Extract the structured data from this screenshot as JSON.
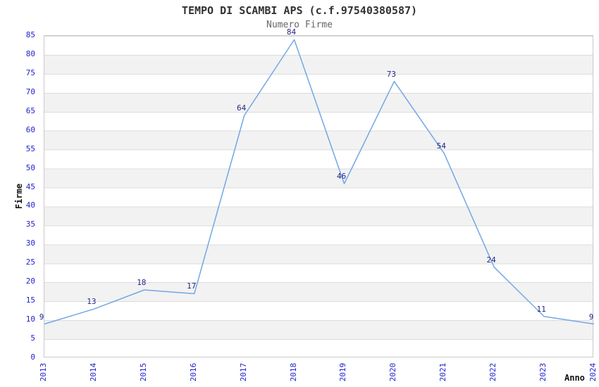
{
  "title": "TEMPO DI SCAMBI APS (c.f.97540380587)",
  "subtitle": "Numero Firme",
  "chart_data": {
    "type": "line",
    "categories": [
      "2013",
      "2014",
      "2015",
      "2016",
      "2017",
      "2018",
      "2019",
      "2020",
      "2021",
      "2022",
      "2023",
      "2024"
    ],
    "series": [
      {
        "name": "Numero Firme",
        "values": [
          9,
          13,
          18,
          17,
          64,
          84,
          46,
          73,
          54,
          24,
          11,
          9
        ]
      }
    ],
    "title": "TEMPO DI SCAMBI APS (c.f.97540380587)",
    "subtitle": "Numero Firme",
    "xlabel": "Anno",
    "ylabel": "Firme",
    "ylim": [
      0,
      85
    ],
    "ytick_step": 5,
    "grid": true,
    "legend": "none",
    "data_labels": true,
    "band_fill": "alternating horizontal stripes every 5 units"
  },
  "colors": {
    "line": "#72a7e5",
    "tick_label": "#2222cc",
    "data_label": "#24248a",
    "stripe": "#f2f2f2",
    "gridline": "#dcdcdc",
    "plot_border": "#c9c9c9",
    "title_text": "#333333",
    "subtitle_text": "#666666",
    "axis_title_text": "#111111"
  }
}
